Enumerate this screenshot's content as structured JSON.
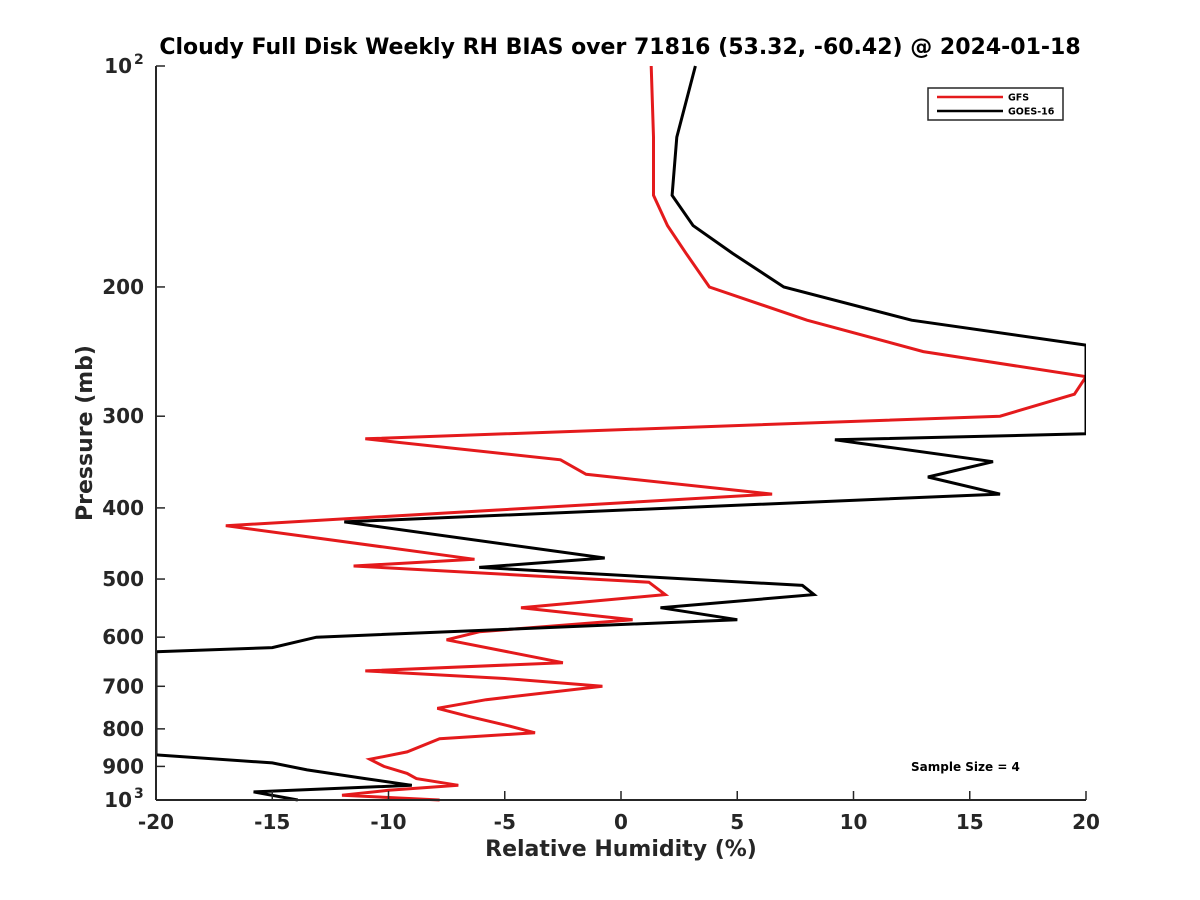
{
  "chart_data": {
    "type": "line",
    "title": "Cloudy Full Disk Weekly RH BIAS over 71816 (53.32, -60.42) @ 2024-01-18",
    "xlabel": "Relative Humidity (%)",
    "ylabel": "Pressure (mb)",
    "xlim": [
      -20,
      20
    ],
    "ylim": [
      100,
      1000
    ],
    "yscale": "log",
    "y_reversed": true,
    "grid": false,
    "legend_position": "top-right",
    "annotation": "Sample Size = 4",
    "xticks": [
      -20,
      -15,
      -10,
      -5,
      0,
      5,
      10,
      15,
      20
    ],
    "xtick_labels": [
      "-20",
      "-15",
      "-10",
      "-5",
      "0",
      "5",
      "10",
      "15",
      "20"
    ],
    "yticks": [
      {
        "value": 100,
        "label": "10",
        "sup": "2"
      },
      {
        "value": 200,
        "label": "200",
        "sup": ""
      },
      {
        "value": 300,
        "label": "300",
        "sup": ""
      },
      {
        "value": 400,
        "label": "400",
        "sup": ""
      },
      {
        "value": 500,
        "label": "500",
        "sup": ""
      },
      {
        "value": 600,
        "label": "600",
        "sup": ""
      },
      {
        "value": 700,
        "label": "700",
        "sup": ""
      },
      {
        "value": 800,
        "label": "800",
        "sup": ""
      },
      {
        "value": 900,
        "label": "900",
        "sup": ""
      },
      {
        "value": 1000,
        "label": "10",
        "sup": "3"
      }
    ],
    "series": [
      {
        "name": "GFS",
        "color": "#e41a1c",
        "points": [
          {
            "x": 1.3,
            "y": 100
          },
          {
            "x": 1.4,
            "y": 125
          },
          {
            "x": 1.4,
            "y": 150
          },
          {
            "x": 2.0,
            "y": 165
          },
          {
            "x": 2.8,
            "y": 180
          },
          {
            "x": 3.8,
            "y": 200
          },
          {
            "x": 8.0,
            "y": 222
          },
          {
            "x": 13.0,
            "y": 245
          },
          {
            "x": 20.0,
            "y": 265
          },
          {
            "x": 19.5,
            "y": 280
          },
          {
            "x": 16.3,
            "y": 300
          },
          {
            "x": -11.0,
            "y": 322
          },
          {
            "x": -2.6,
            "y": 344
          },
          {
            "x": -1.5,
            "y": 360
          },
          {
            "x": 6.5,
            "y": 383
          },
          {
            "x": -17.0,
            "y": 423
          },
          {
            "x": -6.3,
            "y": 470
          },
          {
            "x": -11.5,
            "y": 480
          },
          {
            "x": 1.2,
            "y": 505
          },
          {
            "x": 1.9,
            "y": 525
          },
          {
            "x": -4.3,
            "y": 547
          },
          {
            "x": 0.5,
            "y": 568
          },
          {
            "x": -6.1,
            "y": 590
          },
          {
            "x": -7.5,
            "y": 605
          },
          {
            "x": -2.5,
            "y": 650
          },
          {
            "x": -11.0,
            "y": 667
          },
          {
            "x": -5.0,
            "y": 683
          },
          {
            "x": -0.8,
            "y": 700
          },
          {
            "x": -5.8,
            "y": 730
          },
          {
            "x": -7.9,
            "y": 750
          },
          {
            "x": -6.5,
            "y": 770
          },
          {
            "x": -5.0,
            "y": 790
          },
          {
            "x": -3.7,
            "y": 810
          },
          {
            "x": -7.8,
            "y": 825
          },
          {
            "x": -9.2,
            "y": 860
          },
          {
            "x": -10.8,
            "y": 880
          },
          {
            "x": -10.2,
            "y": 900
          },
          {
            "x": -9.2,
            "y": 920
          },
          {
            "x": -8.8,
            "y": 935
          },
          {
            "x": -7.0,
            "y": 955
          },
          {
            "x": -10.0,
            "y": 970
          },
          {
            "x": -12.0,
            "y": 985
          },
          {
            "x": -7.8,
            "y": 1000
          }
        ]
      },
      {
        "name": "GOES-16",
        "color": "#000000",
        "points": [
          {
            "x": 3.2,
            "y": 100
          },
          {
            "x": 2.4,
            "y": 125
          },
          {
            "x": 2.2,
            "y": 150
          },
          {
            "x": 3.1,
            "y": 165
          },
          {
            "x": 4.8,
            "y": 180
          },
          {
            "x": 7.0,
            "y": 200
          },
          {
            "x": 12.5,
            "y": 222
          },
          {
            "x": 20.0,
            "y": 240
          },
          {
            "x": 20.0,
            "y": 317
          },
          {
            "x": 9.2,
            "y": 323
          },
          {
            "x": 16.0,
            "y": 346
          },
          {
            "x": 13.2,
            "y": 363
          },
          {
            "x": 16.3,
            "y": 383
          },
          {
            "x": -11.9,
            "y": 418
          },
          {
            "x": -0.7,
            "y": 468
          },
          {
            "x": -6.1,
            "y": 482
          },
          {
            "x": 7.8,
            "y": 510
          },
          {
            "x": 8.3,
            "y": 525
          },
          {
            "x": 1.7,
            "y": 547
          },
          {
            "x": 5.0,
            "y": 568
          },
          {
            "x": -13.1,
            "y": 600
          },
          {
            "x": -15.0,
            "y": 620
          },
          {
            "x": -20.0,
            "y": 628
          },
          {
            "x": -20.0,
            "y": 868
          },
          {
            "x": -15.0,
            "y": 890
          },
          {
            "x": -13.5,
            "y": 910
          },
          {
            "x": -11.0,
            "y": 935
          },
          {
            "x": -9.0,
            "y": 955
          },
          {
            "x": -15.8,
            "y": 975
          },
          {
            "x": -13.9,
            "y": 1000
          }
        ]
      }
    ]
  },
  "legend": {
    "items": [
      {
        "label": "GFS",
        "color": "#e41a1c"
      },
      {
        "label": "GOES-16",
        "color": "#000000"
      }
    ]
  }
}
